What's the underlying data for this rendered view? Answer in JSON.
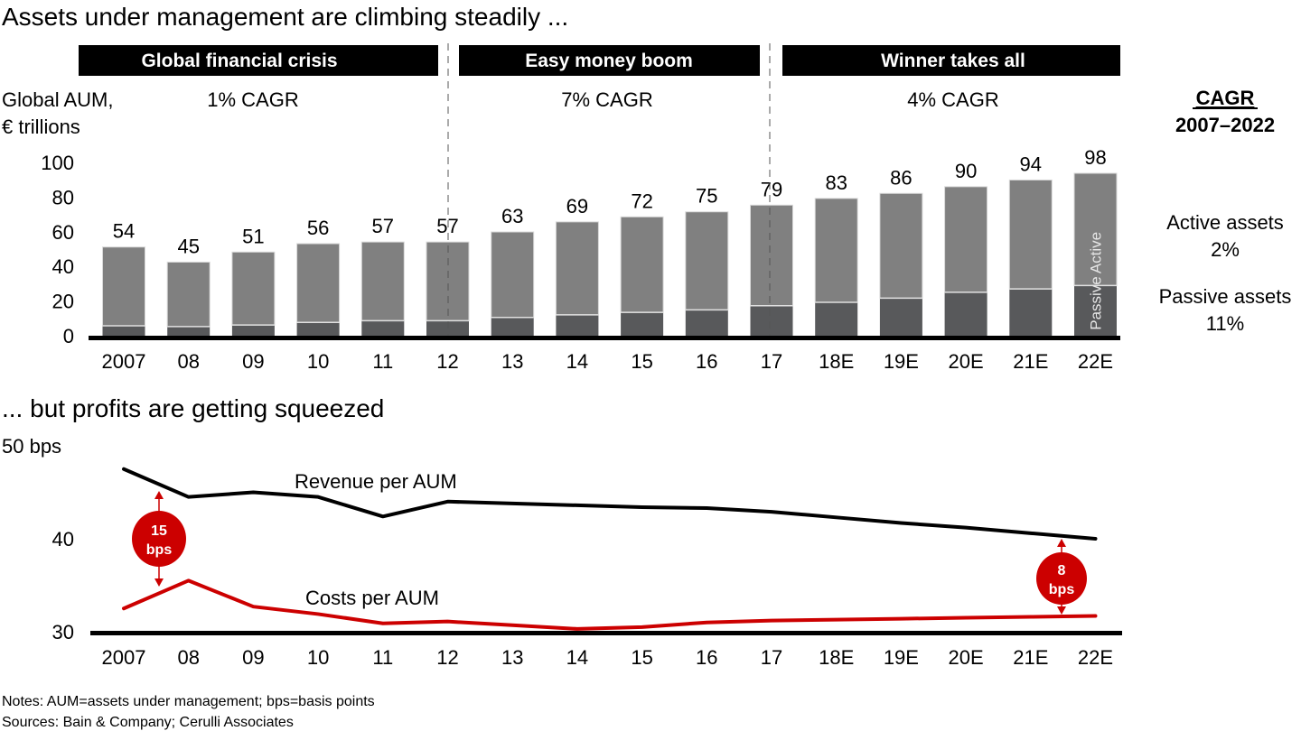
{
  "titles": {
    "top": "Assets under management are climbing steadily ...",
    "bottom": "... but profits are getting squeezed"
  },
  "periods": [
    {
      "label": "Global financial crisis",
      "cagr": "1% CAGR"
    },
    {
      "label": "Easy money boom",
      "cagr": "7% CAGR"
    },
    {
      "label": "Winner takes all",
      "cagr": "4% CAGR"
    }
  ],
  "cagr_panel": {
    "heading": "CAGR",
    "range": "2007–2022",
    "active_label": "Active assets",
    "active_value": "2%",
    "passive_label": "Passive assets",
    "passive_value": "11%"
  },
  "notes": {
    "line1": "Notes: AUM=assets under management; bps=basis points",
    "line2": "Sources: Bain & Company; Cerulli Associates"
  },
  "colors": {
    "active": "#808080",
    "passive": "#58595b",
    "revenue": "#000000",
    "costs": "#cc0000",
    "band": "#000000"
  },
  "chart_data": [
    {
      "type": "bar",
      "stacked": true,
      "title": "Assets under management are climbing steadily ...",
      "ylabel_lines": [
        "Global AUM,",
        "€ trillions"
      ],
      "categories": [
        "2007",
        "08",
        "09",
        "10",
        "11",
        "12",
        "13",
        "14",
        "15",
        "16",
        "17",
        "18E",
        "19E",
        "20E",
        "21E",
        "22E"
      ],
      "totals": [
        54,
        45,
        51,
        56,
        57,
        57,
        63,
        69,
        72,
        75,
        79,
        83,
        86,
        90,
        94,
        98
      ],
      "series": [
        {
          "name": "Passive",
          "values": [
            7,
            6.5,
            7.5,
            9,
            10,
            10,
            12,
            13.5,
            15,
            16.5,
            19,
            21,
            23.5,
            27,
            29,
            31
          ]
        },
        {
          "name": "Active",
          "values": [
            47,
            38.5,
            43.5,
            47,
            47,
            47,
            51,
            55.5,
            57,
            58.5,
            60,
            62,
            62.5,
            63,
            65,
            67
          ]
        }
      ],
      "yticks": [
        0,
        20,
        40,
        60,
        80,
        100
      ],
      "ylim": [
        0,
        100
      ],
      "segment_labels": {
        "active": "Active",
        "passive": "Passive"
      },
      "period_dividers_after": [
        "12",
        "17"
      ]
    },
    {
      "type": "line",
      "title": "... but profits are getting squeezed",
      "categories": [
        "2007",
        "08",
        "09",
        "10",
        "11",
        "12",
        "13",
        "14",
        "15",
        "16",
        "17",
        "18E",
        "19E",
        "20E",
        "21E",
        "22E"
      ],
      "series": [
        {
          "name": "Revenue per AUM",
          "values": [
            47.5,
            44.5,
            45.0,
            44.5,
            42.4,
            44.0,
            43.8,
            43.6,
            43.4,
            43.3,
            42.9,
            42.3,
            41.7,
            41.2,
            40.6,
            40.0
          ]
        },
        {
          "name": "Costs per AUM",
          "values": [
            32.5,
            35.5,
            32.7,
            31.9,
            30.9,
            31.1,
            30.7,
            30.3,
            30.5,
            31.0,
            31.2,
            31.3,
            31.4,
            31.5,
            31.6,
            31.7
          ]
        }
      ],
      "yticks": [
        {
          "value": 30,
          "label": "30"
        },
        {
          "value": 40,
          "label": "40"
        },
        {
          "value": 50,
          "label": "50 bps"
        }
      ],
      "ylim": [
        30,
        50
      ],
      "annotations": [
        {
          "value_line1": "15",
          "value_line2": "bps",
          "at_category_between": [
            "2007",
            "08"
          ]
        },
        {
          "value_line1": "8",
          "value_line2": "bps",
          "at_category_between": [
            "21E",
            "22E"
          ]
        }
      ]
    }
  ]
}
